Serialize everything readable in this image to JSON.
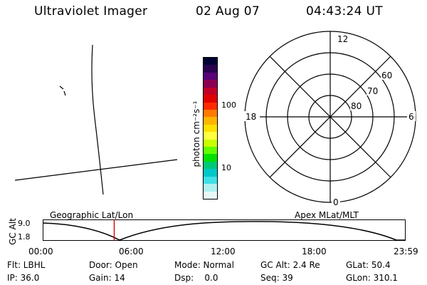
{
  "header": {
    "instrument": "Ultraviolet Imager",
    "date": "02 Aug 07",
    "time": "04:43:24 UT"
  },
  "colorbar": {
    "unit_label": "photon cm⁻²s⁻¹",
    "ticks": [
      "100",
      "10"
    ],
    "colors": [
      "#000033",
      "#2a0050",
      "#5a0078",
      "#8a0050",
      "#c00028",
      "#e00000",
      "#ff2a00",
      "#ff7a00",
      "#ffb400",
      "#ffe000",
      "#ffff40",
      "#c8ff00",
      "#60ff00",
      "#00e000",
      "#00c878",
      "#00c8c8",
      "#40e0e8",
      "#b0f0f0",
      "#e8f8f8"
    ]
  },
  "polar_plot": {
    "mlt_labels": {
      "top": "12",
      "left": "18",
      "right": "6",
      "bottom": "0"
    },
    "lat_labels": [
      "60",
      "70",
      "80"
    ]
  },
  "timeline": {
    "y_axis_label": "GC Alt",
    "y_max_label": "9.0",
    "y_min_label": "1.8",
    "left_title": "Geographic Lat/Lon",
    "right_title": "Apex MLat/MLT",
    "time_ticks": [
      "00:00",
      "06:00",
      "12:00",
      "18:00",
      "23:59"
    ],
    "current_time_fraction": 0.197,
    "marker_color": "#e00000"
  },
  "status": {
    "flt": "Flt: LBHL",
    "door": "Door: Open",
    "mode": "Mode: Normal",
    "gc_alt": "GC Alt: 2.4 Re",
    "glat": "GLat: 50.4",
    "ip": "IP: 36.0",
    "gain": "Gain: 14",
    "dsp": "Dsp:    0.0",
    "seq": "Seq: 39",
    "glon": "GLon: 310.1"
  }
}
